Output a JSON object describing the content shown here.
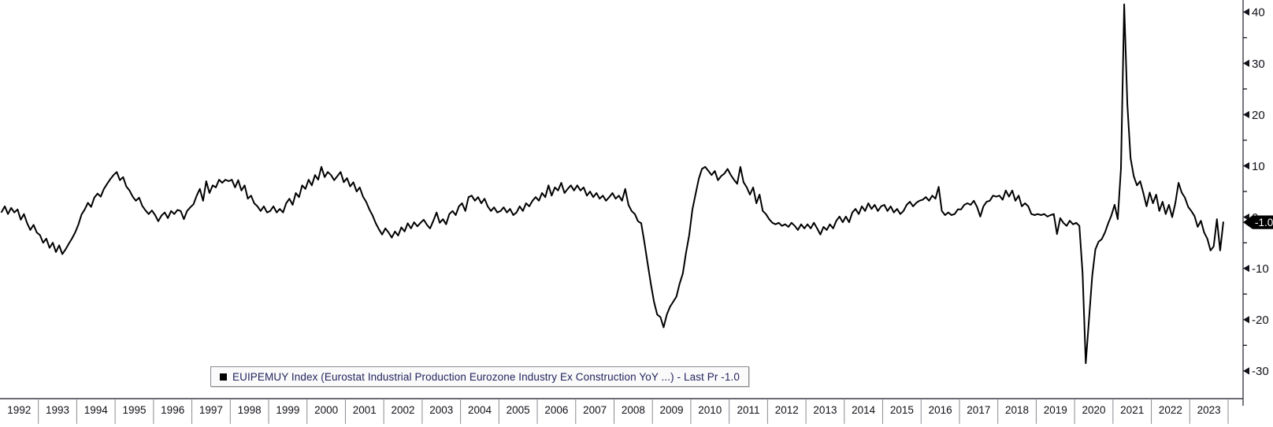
{
  "app": {
    "background": "#ffffff"
  },
  "legend": {
    "bullet_color": "#000000",
    "label": "EUIPEMUY Index (Eurostat Industrial Production Eurozone Industry Ex Construction YoY ...) - Last Pr -1.0",
    "text_color": "#23235f",
    "background": "#fafafa",
    "border_color": "#8a8a94"
  },
  "last_price": {
    "value": "-1.0",
    "badge_bg": "#000000",
    "text_color": "#ffffff"
  },
  "axis": {
    "line_color": "#3c3c46",
    "divider_color": "#8b8b93",
    "label_color": "#101018",
    "y_major_ticks": [
      40,
      30,
      20,
      10,
      0,
      -10,
      -20,
      -30
    ],
    "y_minor_ticks": [
      35,
      25,
      15,
      5,
      -5,
      -15,
      -25
    ],
    "years": [
      "1992",
      "1993",
      "1994",
      "1995",
      "1996",
      "1997",
      "1998",
      "1999",
      "2000",
      "2001",
      "2002",
      "2003",
      "2004",
      "2005",
      "2006",
      "2007",
      "2008",
      "2009",
      "2010",
      "2011",
      "2012",
      "2013",
      "2014",
      "2015",
      "2016",
      "2017",
      "2018",
      "2019",
      "2020",
      "2021",
      "2022",
      "2023"
    ]
  },
  "chart_data": {
    "type": "line",
    "series_name": "EUIPEMUY Index",
    "description": "Eurostat Industrial Production Eurozone Industry Ex Construction YoY (%)",
    "frequency": "monthly",
    "x_start": "1992-01",
    "x_end": "2023-11",
    "ylim": [
      -32,
      43
    ],
    "grid": false,
    "legend_position": "bottom",
    "line_color": "#000000",
    "last_value": -1.0,
    "values": [
      1.0,
      2.1,
      0.6,
      1.8,
      0.9,
      1.5,
      -0.5,
      0.6,
      -1.2,
      -2.5,
      -1.5,
      -3.0,
      -3.5,
      -5.0,
      -4.2,
      -6.0,
      -5.0,
      -6.8,
      -5.5,
      -7.2,
      -6.3,
      -5.2,
      -4.2,
      -3.0,
      -1.5,
      0.5,
      1.5,
      2.8,
      2.0,
      3.8,
      4.6,
      4.0,
      5.5,
      6.5,
      7.4,
      8.2,
      8.8,
      7.2,
      7.8,
      6.0,
      5.2,
      4.0,
      3.2,
      3.8,
      2.2,
      1.3,
      0.6,
      1.3,
      0.4,
      -0.8,
      0.3,
      0.9,
      -0.2,
      1.2,
      0.6,
      1.4,
      1.2,
      -0.4,
      1.2,
      1.9,
      2.5,
      4.2,
      5.5,
      3.2,
      7.0,
      4.7,
      6.2,
      5.8,
      7.3,
      6.7,
      7.3,
      7.0,
      7.3,
      5.8,
      7.2,
      5.2,
      6.2,
      3.6,
      4.2,
      2.7,
      2.1,
      1.2,
      2.1,
      0.9,
      1.2,
      2.1,
      0.9,
      1.6,
      0.9,
      2.7,
      3.6,
      2.4,
      4.7,
      3.9,
      6.2,
      5.5,
      7.3,
      6.2,
      8.2,
      7.3,
      9.8,
      7.8,
      8.8,
      8.2,
      7.2,
      8.0,
      8.8,
      6.8,
      7.6,
      6.0,
      6.8,
      5.0,
      5.8,
      4.0,
      3.0,
      1.5,
      0.3,
      -1.2,
      -2.4,
      -3.4,
      -2.2,
      -3.0,
      -4.0,
      -2.8,
      -3.6,
      -2.0,
      -2.8,
      -1.2,
      -2.2,
      -1.0,
      -1.8,
      -1.1,
      -0.5,
      -1.5,
      -2.2,
      -0.7,
      0.9,
      -1.1,
      -0.4,
      -1.4,
      0.6,
      1.2,
      0.4,
      2.1,
      2.7,
      1.2,
      3.9,
      4.2,
      3.2,
      3.9,
      2.7,
      3.6,
      2.1,
      1.2,
      1.9,
      0.9,
      1.2,
      1.9,
      0.9,
      1.6,
      0.4,
      0.9,
      2.1,
      1.2,
      2.7,
      2.1,
      3.2,
      3.9,
      3.2,
      4.7,
      3.9,
      6.2,
      4.2,
      5.8,
      5.2,
      6.7,
      4.7,
      5.5,
      6.2,
      5.2,
      6.2,
      5.2,
      5.8,
      4.2,
      5.0,
      3.9,
      4.7,
      3.6,
      4.2,
      3.2,
      3.9,
      4.7,
      3.6,
      4.2,
      3.2,
      5.5,
      2.4,
      1.2,
      0.6,
      -0.8,
      -1.2,
      -5.0,
      -9.0,
      -13.0,
      -16.5,
      -19.0,
      -19.5,
      -21.5,
      -19.0,
      -17.5,
      -16.5,
      -15.5,
      -13.0,
      -11.0,
      -7.0,
      -3.5,
      1.5,
      4.5,
      7.5,
      9.4,
      9.8,
      9.0,
      8.2,
      9.0,
      7.2,
      8.0,
      8.5,
      9.4,
      8.2,
      7.3,
      6.5,
      9.8,
      6.8,
      5.8,
      4.4,
      5.8,
      2.7,
      4.4,
      1.2,
      0.6,
      -0.4,
      -1.1,
      -1.4,
      -1.1,
      -1.7,
      -1.4,
      -1.9,
      -1.1,
      -1.7,
      -2.5,
      -1.4,
      -2.2,
      -1.4,
      -2.2,
      -1.1,
      -2.2,
      -3.4,
      -1.9,
      -2.5,
      -1.4,
      -2.2,
      -0.7,
      0.1,
      -1.0,
      0.1,
      -1.0,
      0.9,
      1.6,
      0.6,
      2.1,
      1.2,
      2.7,
      1.6,
      2.4,
      1.2,
      2.1,
      2.4,
      1.2,
      2.1,
      0.9,
      1.6,
      0.6,
      1.2,
      2.4,
      3.0,
      2.1,
      2.8,
      3.2,
      3.4,
      3.9,
      3.2,
      4.2,
      3.6,
      5.9,
      1.2,
      0.4,
      0.9,
      0.4,
      0.6,
      1.5,
      1.5,
      2.4,
      2.7,
      2.4,
      3.2,
      2.0,
      0.1,
      2.1,
      3.0,
      3.2,
      4.2,
      4.0,
      4.2,
      3.4,
      5.2,
      4.0,
      5.2,
      3.2,
      4.2,
      2.1,
      2.7,
      2.1,
      0.6,
      0.4,
      0.6,
      0.4,
      0.6,
      0.1,
      0.4,
      0.6,
      -3.3,
      -0.2,
      -1.1,
      -1.7,
      -0.7,
      -1.4,
      -1.1,
      -1.7,
      -11.0,
      -28.5,
      -20.0,
      -11.5,
      -6.3,
      -4.8,
      -4.3,
      -3.0,
      -1.2,
      0.3,
      2.4,
      -0.4,
      9.5,
      41.5,
      22.0,
      11.5,
      8.0,
      6.2,
      7.0,
      4.7,
      2.1,
      4.8,
      2.7,
      4.4,
      1.2,
      3.0,
      0.6,
      2.4,
      0.0,
      2.7,
      6.7,
      4.8,
      3.8,
      2.0,
      1.2,
      0.2,
      -1.9,
      -0.7,
      -3.0,
      -4.2,
      -6.5,
      -5.7,
      -0.4,
      -6.5,
      -1.0
    ]
  }
}
